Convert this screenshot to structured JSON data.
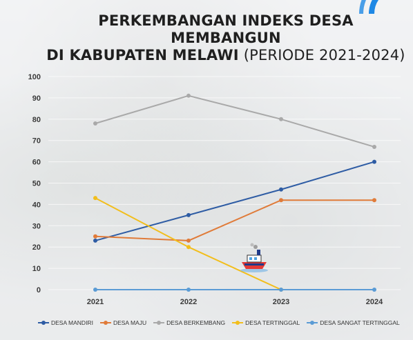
{
  "title": {
    "line1": "PERKEMBANGAN INDEKS DESA MEMBANGUN",
    "line2_bold": "DI KABUPATEN MELAWI",
    "line2_normal": "(PERIODE 2021-2024)"
  },
  "icons": {
    "boat": "boat-illustration-icon",
    "corner_arc": "wifi-arc-decoration"
  },
  "chart_data": {
    "type": "line",
    "categories": [
      "2021",
      "2022",
      "2023",
      "2024"
    ],
    "ylim": [
      0,
      100
    ],
    "yticks": [
      0,
      10,
      20,
      30,
      40,
      50,
      60,
      70,
      80,
      90,
      100
    ],
    "grid": true,
    "legend_position": "bottom",
    "series": [
      {
        "name": "DESA MANDIRI",
        "color": "#2e5ca4",
        "values": [
          23,
          35,
          47,
          60
        ]
      },
      {
        "name": "DESA MAJU",
        "color": "#e07b39",
        "values": [
          25,
          23,
          42,
          42
        ]
      },
      {
        "name": "DESA BERKEMBANG",
        "color": "#a9a9a9",
        "values": [
          78,
          91,
          80,
          67
        ]
      },
      {
        "name": "DESA TERTINGGAL",
        "color": "#f2be1c",
        "values": [
          43,
          20,
          0,
          null
        ]
      },
      {
        "name": "DESA SANGAT TERTINGGAL",
        "color": "#5a9bd5",
        "values": [
          0,
          0,
          0,
          0
        ]
      }
    ]
  }
}
